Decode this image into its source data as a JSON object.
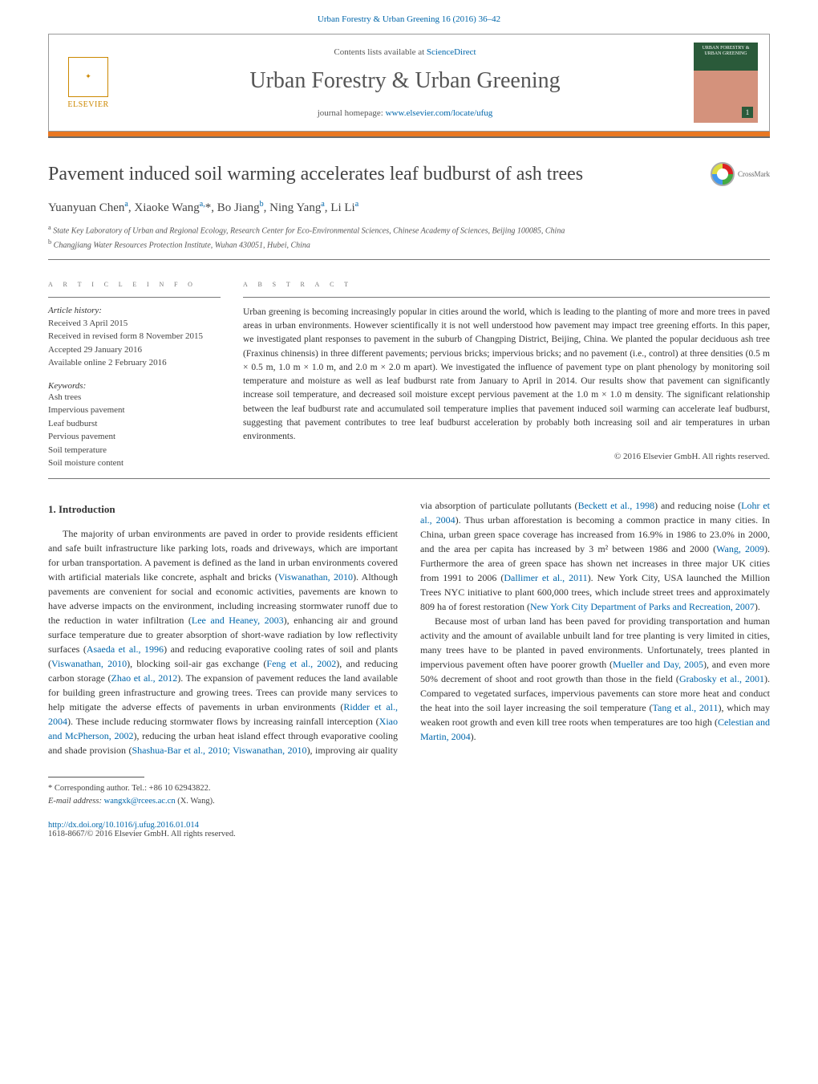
{
  "journal_ref": {
    "prefix": "Urban Forestry & Urban Greening 16 (2016) 36–42",
    "link_color": "#0066aa"
  },
  "header": {
    "contents_text": "Contents lists available at ",
    "contents_link": "ScienceDirect",
    "journal_title": "Urban Forestry & Urban Greening",
    "homepage_text": "journal homepage: ",
    "homepage_link": "www.elsevier.com/locate/ufug",
    "publisher_name": "ELSEVIER",
    "cover_title": "URBAN FORESTRY & URBAN GREENING",
    "cover_issue": "1"
  },
  "crossmark_label": "CrossMark",
  "article": {
    "title": "Pavement induced soil warming accelerates leaf budburst of ash trees",
    "authors_html": "Yuanyuan Chen<sup>a</sup>, Xiaoke Wang<sup>a,</sup>*, Bo Jiang<sup>b</sup>, Ning Yang<sup>a</sup>, Li Li<sup>a</sup>",
    "affiliations": [
      "a State Key Laboratory of Urban and Regional Ecology, Research Center for Eco-Environmental Sciences, Chinese Academy of Sciences, Beijing 100085, China",
      "b Changjiang Water Resources Protection Institute, Wuhan 430051, Hubei, China"
    ]
  },
  "info": {
    "section_label": "a r t i c l e   i n f o",
    "history_label": "Article history:",
    "history": [
      "Received 3 April 2015",
      "Received in revised form 8 November 2015",
      "Accepted 29 January 2016",
      "Available online 2 February 2016"
    ],
    "keywords_label": "Keywords:",
    "keywords": [
      "Ash trees",
      "Impervious pavement",
      "Leaf budburst",
      "Pervious pavement",
      "Soil temperature",
      "Soil moisture content"
    ]
  },
  "abstract": {
    "section_label": "a b s t r a c t",
    "text": "Urban greening is becoming increasingly popular in cities around the world, which is leading to the planting of more and more trees in paved areas in urban environments. However scientifically it is not well understood how pavement may impact tree greening efforts. In this paper, we investigated plant responses to pavement in the suburb of Changping District, Beijing, China. We planted the popular deciduous ash tree (Fraxinus chinensis) in three different pavements; pervious bricks; impervious bricks; and no pavement (i.e., control) at three densities (0.5 m × 0.5 m, 1.0 m × 1.0 m, and 2.0 m × 2.0 m apart). We investigated the influence of pavement type on plant phenology by monitoring soil temperature and moisture as well as leaf budburst rate from January to April in 2014. Our results show that pavement can significantly increase soil temperature, and decreased soil moisture except pervious pavement at the 1.0 m × 1.0 m density. The significant relationship between the leaf budburst rate and accumulated soil temperature implies that pavement induced soil warming can accelerate leaf budburst, suggesting that pavement contributes to tree leaf budburst acceleration by probably both increasing soil and air temperatures in urban environments.",
    "copyright": "© 2016 Elsevier GmbH. All rights reserved."
  },
  "body": {
    "heading": "1. Introduction",
    "p1_pre": "The majority of urban environments are paved in order to provide residents efficient and safe built infrastructure like parking lots, roads and driveways, which are important for urban transportation. A pavement is defined as the land in urban environments covered with artificial materials like concrete, asphalt and bricks (",
    "ref1": "Viswanathan, 2010",
    "p1_mid1": "). Although pavements are convenient for social and economic activities, pavements are known to have adverse impacts on the environment, including increasing stormwater runoff due to the reduction in water infiltration (",
    "ref2": "Lee and Heaney, 2003",
    "p1_mid2": "), enhancing air and ground surface temperature due to greater absorption of short-wave radiation by low reflectivity surfaces (",
    "ref3": "Asaeda et al., 1996",
    "p1_mid3": ") and reducing evaporative cooling rates of soil and plants (",
    "ref4": "Viswanathan, 2010",
    "p1_mid4": "), blocking soil-air gas exchange (",
    "ref5": "Feng et al., 2002",
    "p1_mid5": "), and reducing carbon storage (",
    "ref6": "Zhao et al., 2012",
    "p1_mid6": "). The expansion of pavement reduces the land available for building green infrastructure and growing trees. Trees can provide many services to help mitigate the adverse effects of pavements in urban environments (",
    "ref7": "Ridder et al., 2004",
    "p1_mid7": "). These include reducing stormwater flows by increasing rainfall interception (",
    "ref8": "Xiao and McPherson, 2002",
    "p1_mid8": "), reducing the urban heat island effect through evaporative cooling and shade provision (",
    "ref9": "Shashua-Bar et al., 2010; Viswanathan, 2010",
    "p1_mid9": "), improving air quality via absorption of particulate pollutants (",
    "ref10": "Beckett et al., 1998",
    "p1_mid10": ") and reducing noise (",
    "ref11": "Lohr et al., 2004",
    "p1_mid11": "). Thus urban afforestation is becoming a common practice in many cities. In China, urban green space coverage has increased from 16.9% in 1986 to 23.0% in 2000, and the area per capita has increased by 3 m² between 1986 and 2000 (",
    "ref12": "Wang, 2009",
    "p1_mid12": "). Furthermore the area of green space has shown net increases in three major UK cities from 1991 to 2006 (",
    "ref13": "Dallimer et al., 2011",
    "p1_mid13": "). New York City, USA launched the Million Trees NYC initiative to plant 600,000 trees, which include street trees and approximately 809 ha of forest restoration (",
    "ref14": "New York City Department of Parks and Recreation, 2007",
    "p1_end": ").",
    "p2_pre": "Because most of urban land has been paved for providing transportation and human activity and the amount of available unbuilt land for tree planting is very limited in cities, many trees have to be planted in paved environments. Unfortunately, trees planted in impervious pavement often have poorer growth (",
    "ref15": "Mueller and Day, 2005",
    "p2_mid1": "), and even more 50% decrement of shoot and root growth than those in the field (",
    "ref16": "Grabosky et al., 2001",
    "p2_mid2": "). Compared to vegetated surfaces, impervious pavements can store more heat and conduct the heat into the soil layer increasing the soil temperature (",
    "ref17": "Tang et al., 2011",
    "p2_mid3": "), which may weaken root growth and even kill tree roots when temperatures are too high (",
    "ref18": "Celestian and Martin, 2004",
    "p2_end": ")."
  },
  "footnotes": {
    "corresponding": "* Corresponding author. Tel.: +86 10 62943822.",
    "email_label": "E-mail address: ",
    "email": "wangxk@rcees.ac.cn",
    "email_suffix": " (X. Wang)."
  },
  "bottom": {
    "doi": "http://dx.doi.org/10.1016/j.ufug.2016.01.014",
    "issn_line": "1618-8667/© 2016 Elsevier GmbH. All rights reserved."
  },
  "colors": {
    "link": "#0066aa",
    "accent_bar": "#e87722",
    "elsevier_orange": "#cc8800",
    "text": "#333333",
    "muted": "#555555",
    "rule": "#777777",
    "cover_top": "#2a5a3a",
    "cover_bottom": "#d4927c"
  }
}
